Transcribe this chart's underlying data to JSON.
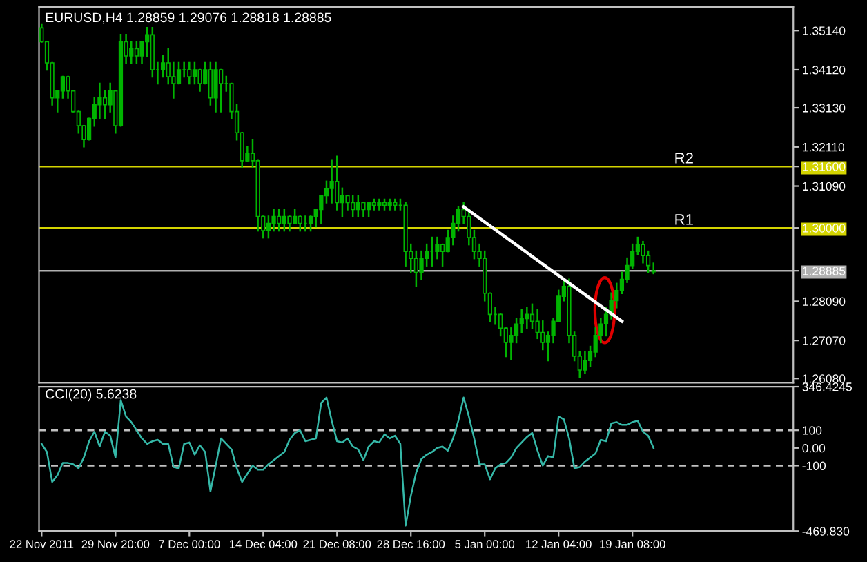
{
  "chart_data": [
    {
      "type": "candlestick",
      "title": "EURUSD,H4 1.28859 1.29076 1.28818 1.28885",
      "color": "#00b400",
      "categories": [
        null,
        null,
        null,
        null,
        null,
        null,
        null,
        null,
        null,
        null,
        null,
        null,
        null,
        null,
        null,
        null,
        null,
        null,
        null,
        null,
        null,
        null,
        null,
        null,
        null,
        null,
        null,
        null,
        null,
        null,
        null,
        null,
        null,
        null,
        null,
        null,
        null,
        null,
        null,
        null,
        null,
        null,
        null,
        null,
        null,
        null,
        null,
        null,
        null,
        null,
        null,
        null,
        null,
        null,
        null,
        null,
        null,
        null,
        null,
        null,
        null,
        null,
        null,
        null,
        null,
        null,
        null,
        null,
        null,
        null,
        null,
        null,
        null,
        null,
        null,
        null,
        null,
        null,
        null,
        null,
        null,
        null,
        null,
        null,
        null,
        null,
        null,
        null,
        null,
        null,
        null,
        null,
        null,
        null,
        null,
        null,
        null,
        null,
        null,
        null,
        null,
        null,
        null,
        null,
        null,
        null,
        null,
        null,
        null,
        null,
        null,
        null,
        null,
        null,
        null,
        null,
        null,
        null,
        null,
        null,
        null,
        null,
        null,
        null,
        null,
        null,
        null,
        null,
        null,
        null,
        null,
        null,
        null,
        null,
        null,
        null,
        null,
        null,
        null,
        null,
        null,
        null,
        null
      ],
      "ohlc": [
        [
          1.3521,
          1.3529,
          1.3485,
          1.3485
        ],
        [
          1.3485,
          1.3485,
          1.3412,
          1.343
        ],
        [
          1.343,
          1.343,
          1.3321,
          1.3339
        ],
        [
          1.3339,
          1.3357,
          1.3303,
          1.3357
        ],
        [
          1.3357,
          1.3394,
          1.3339,
          1.3394
        ],
        [
          1.3394,
          1.3394,
          1.3339,
          1.3357
        ],
        [
          1.3357,
          1.3357,
          1.3303,
          1.3303
        ],
        [
          1.3303,
          1.3303,
          1.3248,
          1.3266
        ],
        [
          1.3266,
          1.3266,
          1.3212,
          1.323
        ],
        [
          1.323,
          1.3285,
          1.323,
          1.3285
        ],
        [
          1.3285,
          1.3339,
          1.3266,
          1.3321
        ],
        [
          1.3321,
          1.3376,
          1.3285,
          1.3339
        ],
        [
          1.3339,
          1.3357,
          1.3285,
          1.3321
        ],
        [
          1.3321,
          1.3376,
          1.3303,
          1.3357
        ],
        [
          1.3357,
          1.3357,
          1.3248,
          1.3266
        ],
        [
          1.3266,
          1.3503,
          1.3266,
          1.3485
        ],
        [
          1.3485,
          1.3503,
          1.343,
          1.3448
        ],
        [
          1.3448,
          1.3485,
          1.343,
          1.3467
        ],
        [
          1.3467,
          1.3485,
          1.343,
          1.3448
        ],
        [
          1.3448,
          1.3485,
          1.343,
          1.3485
        ],
        [
          1.3485,
          1.3521,
          1.3448,
          1.3503
        ],
        [
          1.3503,
          1.3521,
          1.3394,
          1.3412
        ],
        [
          1.3412,
          1.343,
          1.3376,
          1.3412
        ],
        [
          1.3412,
          1.3448,
          1.3394,
          1.343
        ],
        [
          1.343,
          1.3467,
          1.3376,
          1.3394
        ],
        [
          1.3394,
          1.343,
          1.3339,
          1.3376
        ],
        [
          1.3376,
          1.343,
          1.3376,
          1.3412
        ],
        [
          1.3412,
          1.343,
          1.3394,
          1.3412
        ],
        [
          1.3412,
          1.343,
          1.3376,
          1.3394
        ],
        [
          1.3394,
          1.343,
          1.3376,
          1.3412
        ],
        [
          1.3412,
          1.3412,
          1.3357,
          1.3376
        ],
        [
          1.3376,
          1.343,
          1.3376,
          1.3412
        ],
        [
          1.3412,
          1.343,
          1.3321,
          1.3339
        ],
        [
          1.3339,
          1.343,
          1.3303,
          1.3412
        ],
        [
          1.3412,
          1.3412,
          1.3303,
          1.3376
        ],
        [
          1.3376,
          1.3394,
          1.3357,
          1.3376
        ],
        [
          1.3376,
          1.3376,
          1.3285,
          1.3303
        ],
        [
          1.3303,
          1.3321,
          1.323,
          1.3248
        ],
        [
          1.3248,
          1.3248,
          1.3157,
          1.3175
        ],
        [
          1.3175,
          1.3212,
          1.3175,
          1.3194
        ],
        [
          1.3194,
          1.323,
          1.3157,
          1.3175
        ],
        [
          1.3175,
          1.3175,
          1.2993,
          1.303
        ],
        [
          1.303,
          1.303,
          1.2975,
          1.2993
        ],
        [
          1.2993,
          1.303,
          1.2975,
          1.3012
        ],
        [
          1.3012,
          1.3048,
          1.2993,
          1.303
        ],
        [
          1.303,
          1.3048,
          1.2993,
          1.3012
        ],
        [
          1.3012,
          1.3048,
          1.2993,
          1.303
        ],
        [
          1.303,
          1.303,
          1.2993,
          1.3012
        ],
        [
          1.3012,
          1.3048,
          1.3012,
          1.303
        ],
        [
          1.303,
          1.303,
          1.2993,
          1.3012
        ],
        [
          1.3012,
          1.303,
          1.2993,
          1.3012
        ],
        [
          1.3012,
          1.303,
          1.2993,
          1.303
        ],
        [
          1.303,
          1.3048,
          1.3004,
          1.3048
        ],
        [
          1.3048,
          1.3084,
          1.3012,
          1.3084
        ],
        [
          1.3084,
          1.3121,
          1.3066,
          1.3103
        ],
        [
          1.3103,
          1.3175,
          1.3066,
          1.3121
        ],
        [
          1.3121,
          1.3186,
          1.3048,
          1.3066
        ],
        [
          1.3066,
          1.3103,
          1.303,
          1.3084
        ],
        [
          1.3084,
          1.3084,
          1.3048,
          1.3066
        ],
        [
          1.3066,
          1.3084,
          1.303,
          1.3048
        ],
        [
          1.3048,
          1.3084,
          1.303,
          1.3066
        ],
        [
          1.3066,
          1.3066,
          1.303,
          1.3048
        ],
        [
          1.3048,
          1.3066,
          1.303,
          1.3066
        ],
        [
          1.3066,
          1.3074,
          1.3048,
          1.3059
        ],
        [
          1.3059,
          1.3074,
          1.3048,
          1.3066
        ],
        [
          1.3066,
          1.3074,
          1.3048,
          1.3059
        ],
        [
          1.3059,
          1.3074,
          1.3048,
          1.3066
        ],
        [
          1.3066,
          1.3074,
          1.3048,
          1.3059
        ],
        [
          1.3059,
          1.3074,
          1.3048,
          1.3059
        ],
        [
          1.3059,
          1.3066,
          1.2902,
          1.2939
        ],
        [
          1.2939,
          1.2957,
          1.2884,
          1.2921
        ],
        [
          1.2921,
          1.2939,
          1.2848,
          1.2884
        ],
        [
          1.2884,
          1.2939,
          1.2866,
          1.2921
        ],
        [
          1.2921,
          1.2957,
          1.2902,
          1.2939
        ],
        [
          1.2939,
          1.2975,
          1.2902,
          1.2939
        ],
        [
          1.2939,
          1.2975,
          1.2921,
          1.2957
        ],
        [
          1.2957,
          1.2957,
          1.2902,
          1.2939
        ],
        [
          1.2939,
          1.2993,
          1.2939,
          1.2975
        ],
        [
          1.2975,
          1.303,
          1.2957,
          1.3012
        ],
        [
          1.3012,
          1.3055,
          1.2993,
          1.3048
        ],
        [
          1.3048,
          1.3066,
          1.3012,
          1.303
        ],
        [
          1.303,
          1.3048,
          1.2957,
          1.2975
        ],
        [
          1.2975,
          1.2993,
          1.2921,
          1.2939
        ],
        [
          1.2939,
          1.2957,
          1.2902,
          1.2921
        ],
        [
          1.2921,
          1.2939,
          1.2811,
          1.283
        ],
        [
          1.283,
          1.283,
          1.2757,
          1.2775
        ],
        [
          1.2775,
          1.2793,
          1.275,
          1.2775
        ],
        [
          1.2775,
          1.2775,
          1.272,
          1.2739
        ],
        [
          1.2739,
          1.2739,
          1.2666,
          1.2702
        ],
        [
          1.2702,
          1.2739,
          1.2659,
          1.272
        ],
        [
          1.272,
          1.2764,
          1.2702,
          1.275
        ],
        [
          1.275,
          1.2786,
          1.2728,
          1.2764
        ],
        [
          1.2764,
          1.2793,
          1.2739,
          1.2775
        ],
        [
          1.2775,
          1.2801,
          1.2739,
          1.2757
        ],
        [
          1.2757,
          1.2786,
          1.2713,
          1.2728
        ],
        [
          1.2728,
          1.2757,
          1.2684,
          1.2702
        ],
        [
          1.2702,
          1.2728,
          1.2655,
          1.272
        ],
        [
          1.272,
          1.2764,
          1.2702,
          1.2757
        ],
        [
          1.2757,
          1.2837,
          1.2757,
          1.2822
        ],
        [
          1.2822,
          1.2866,
          1.2811,
          1.2848
        ],
        [
          1.2848,
          1.2866,
          1.2702,
          1.272
        ],
        [
          1.272,
          1.2728,
          1.2655,
          1.2666
        ],
        [
          1.2666,
          1.2677,
          1.2611,
          1.263
        ],
        [
          1.263,
          1.2677,
          1.2622,
          1.2655
        ],
        [
          1.2655,
          1.2691,
          1.264,
          1.2677
        ],
        [
          1.2677,
          1.2739,
          1.2666,
          1.272
        ],
        [
          1.272,
          1.2764,
          1.2702,
          1.275
        ],
        [
          1.275,
          1.2793,
          1.272,
          1.2775
        ],
        [
          1.2775,
          1.283,
          1.2764,
          1.2811
        ],
        [
          1.2811,
          1.2855,
          1.2793,
          1.2837
        ],
        [
          1.2837,
          1.2884,
          1.283,
          1.2866
        ],
        [
          1.2866,
          1.2921,
          1.2859,
          1.2902
        ],
        [
          1.2902,
          1.2957,
          1.2895,
          1.2939
        ],
        [
          1.2939,
          1.2975,
          1.2932,
          1.2957
        ],
        [
          1.2957,
          1.2964,
          1.291,
          1.2928
        ],
        [
          1.2928,
          1.2939,
          1.2884,
          1.2902
        ],
        [
          1.28859,
          1.29076,
          1.28818,
          1.28885
        ],
        null,
        null,
        null,
        null,
        null,
        null,
        null,
        null,
        null,
        null,
        null,
        null,
        null,
        null,
        null,
        null,
        null,
        null,
        null,
        null,
        null,
        null,
        null,
        null,
        null,
        null
      ],
      "series": [
        {
          "type": "line",
          "color": "#ffffff",
          "values": [
            null,
            null,
            null,
            null,
            null,
            null,
            null,
            null,
            null,
            null,
            null,
            null,
            null,
            null,
            null,
            null,
            null,
            null,
            null,
            null,
            null,
            null,
            null,
            null,
            null,
            null,
            null,
            null,
            null,
            null,
            null,
            null,
            null,
            null,
            null,
            null,
            null,
            null,
            null,
            null,
            null,
            null,
            null,
            null,
            null,
            null,
            null,
            null,
            null,
            null,
            null,
            null,
            null,
            null,
            null,
            null,
            null,
            null,
            null,
            null,
            null,
            null,
            null,
            null,
            null,
            null,
            null,
            null,
            null,
            null,
            null,
            null,
            null,
            null,
            null,
            null,
            null,
            null,
            null,
            null,
            1.3055,
            null,
            null,
            null,
            null,
            null,
            null,
            null,
            null,
            null,
            null,
            null,
            null,
            null,
            null,
            null,
            null,
            null,
            null,
            null,
            null,
            null,
            null,
            null,
            null,
            null,
            null,
            null,
            null,
            null,
            1.2757,
            null,
            null,
            null,
            null,
            null,
            null,
            null,
            null,
            null,
            null,
            null,
            null,
            null,
            null,
            null,
            null,
            null,
            null,
            null,
            null,
            null,
            null,
            null,
            null,
            null,
            null,
            null,
            null,
            null,
            null,
            null,
            null
          ]
        }
      ],
      "ylim": [
        1.2597,
        1.3576
      ],
      "yticks": [
        {
          "value": 1.3514,
          "label": "1.35140"
        },
        {
          "value": 1.3412,
          "label": "1.34120"
        },
        {
          "value": 1.3313,
          "label": "1.33130"
        },
        {
          "value": 1.3211,
          "label": "1.32110"
        },
        {
          "value": 1.316,
          "label": "1.31600"
        },
        {
          "value": 1.3109,
          "label": "1.31090"
        },
        {
          "value": 1.3,
          "label": "1.30000"
        },
        {
          "value": 1.28885,
          "label": "1.28885"
        },
        {
          "value": 1.2809,
          "label": "1.28090"
        },
        {
          "value": 1.2707,
          "label": "1.27070"
        },
        {
          "value": 1.2608,
          "label": "1.26080"
        }
      ],
      "ref_lines": [
        {
          "axis": "y",
          "value": 1.316,
          "label": "R2",
          "color": "#d4d400"
        },
        {
          "axis": "y",
          "value": 1.3,
          "label": "R1",
          "color": "#d4d400"
        },
        {
          "axis": "y",
          "value": 1.28885,
          "color": "#b0b0b0"
        }
      ],
      "tick_labels": "y"
    },
    {
      "type": "line",
      "title": "CCI(20) 5.6238",
      "categories": [
        "22 Nov 2011",
        null,
        null,
        null,
        null,
        null,
        null,
        null,
        null,
        null,
        null,
        null,
        null,
        null,
        "29 Nov 20:00",
        null,
        null,
        null,
        null,
        null,
        null,
        null,
        null,
        null,
        null,
        null,
        null,
        null,
        "7 Dec 00:00",
        null,
        null,
        null,
        null,
        null,
        null,
        null,
        null,
        null,
        null,
        null,
        null,
        null,
        "14 Dec 04:00",
        null,
        null,
        null,
        null,
        null,
        null,
        null,
        null,
        null,
        null,
        null,
        null,
        null,
        "21 Dec 08:00",
        null,
        null,
        null,
        null,
        null,
        null,
        null,
        null,
        null,
        null,
        null,
        null,
        null,
        "28 Dec 16:00",
        null,
        null,
        null,
        null,
        null,
        null,
        null,
        null,
        null,
        null,
        null,
        null,
        null,
        "5 Jan 00:00",
        null,
        null,
        null,
        null,
        null,
        null,
        null,
        null,
        null,
        null,
        null,
        null,
        null,
        "12 Jan 04:00",
        null,
        null,
        null,
        null,
        null,
        null,
        null,
        null,
        null,
        null,
        null,
        null,
        null,
        "19 Jan 08:00",
        null,
        null,
        null,
        null,
        null,
        null,
        null,
        null,
        null,
        null,
        null,
        null,
        null,
        null,
        null,
        null,
        null,
        null,
        null,
        null,
        null,
        null,
        null,
        null,
        null,
        null,
        null,
        null,
        null,
        null
      ],
      "series": [
        {
          "color": "#35b8a8",
          "values": [
            23,
            -23,
            -192,
            -154,
            -85,
            -85,
            -92,
            -115,
            -54,
            38,
            92,
            8,
            92,
            69,
            -54,
            270,
            177,
            146,
            100,
            54,
            23,
            38,
            46,
            23,
            23,
            -108,
            -115,
            23,
            31,
            -38,
            15,
            -23,
            -246,
            -100,
            54,
            23,
            -8,
            -115,
            -192,
            -146,
            -100,
            -123,
            -123,
            -92,
            -69,
            -46,
            -23,
            46,
            85,
            100,
            38,
            46,
            54,
            254,
            285,
            154,
            38,
            31,
            54,
            8,
            -8,
            -69,
            8,
            38,
            31,
            77,
            54,
            69,
            23,
            -439,
            -270,
            -139,
            -62,
            -38,
            -23,
            0,
            8,
            -15,
            54,
            154,
            285,
            177,
            54,
            -92,
            -92,
            -177,
            -115,
            -92,
            -85,
            -54,
            0,
            31,
            62,
            85,
            -15,
            -100,
            -46,
            -54,
            177,
            162,
            54,
            -115,
            -108,
            -77,
            -54,
            -31,
            46,
            38,
            139,
            146,
            131,
            131,
            146,
            154,
            92,
            69,
            0,
            null,
            null,
            null,
            null,
            null,
            null,
            null,
            null,
            null,
            null,
            null,
            null,
            null,
            null,
            null,
            null,
            null,
            null,
            null,
            null,
            null,
            null,
            null,
            null,
            null,
            null
          ]
        }
      ],
      "ylim": [
        -469.83,
        346.4245
      ],
      "yticks": [
        {
          "value": 346.4245,
          "label": "346.4245"
        },
        100,
        {
          "value": 0,
          "label": "0.00"
        },
        -100,
        {
          "value": -469.83,
          "label": "-469.830"
        }
      ],
      "ref_lines": [
        {
          "axis": "y",
          "value": 100,
          "color": "#c0c0c0",
          "line_style": "dashed"
        },
        {
          "axis": "y",
          "value": -100,
          "color": "#c0c0c0",
          "line_style": "dashed"
        }
      ]
    }
  ]
}
